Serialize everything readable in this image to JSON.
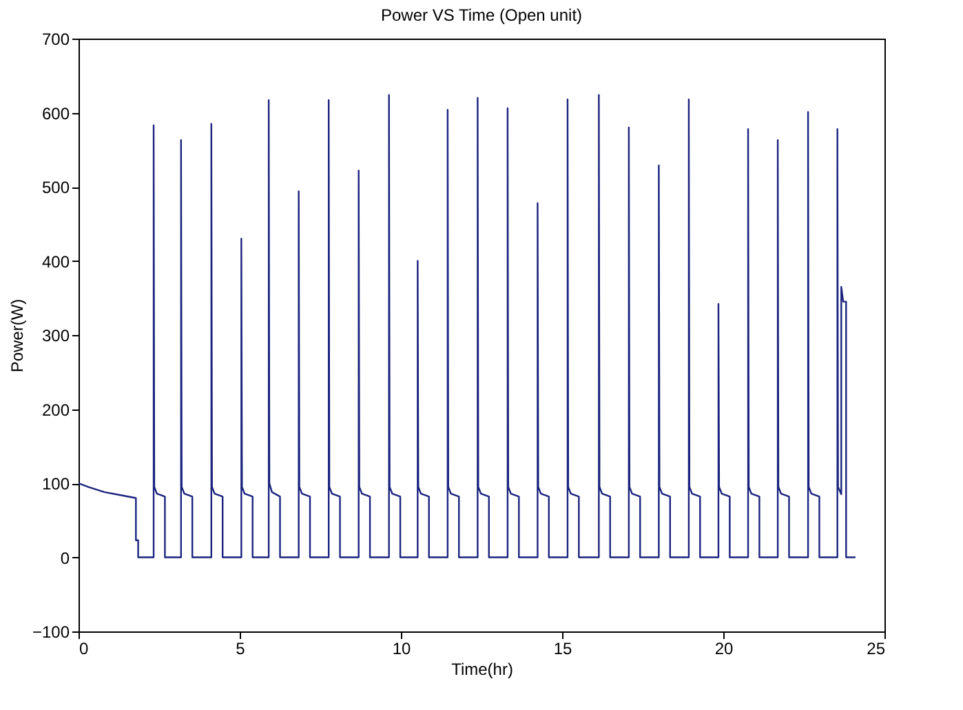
{
  "chart_data": {
    "type": "line",
    "title": "Power VS Time (Open unit)",
    "xlabel": "Time(hr)",
    "ylabel": "Power(W)",
    "xlim": [
      0,
      25
    ],
    "xticks": [
      0,
      5,
      10,
      15,
      20,
      25
    ],
    "ylim": [
      -100,
      700
    ],
    "yticks": [
      -100,
      0,
      100,
      200,
      300,
      400,
      500,
      600,
      700
    ],
    "grid": false,
    "marker": "none",
    "line_style": "solid",
    "series": [
      {
        "color": "#1a237e",
        "x": [
          0,
          0.3,
          0.8,
          1.3,
          1.78,
          1.78,
          1.85,
          1.85,
          2.33,
          2.33,
          2.35,
          2.43,
          2.68,
          2.68,
          3.18,
          3.18,
          3.2,
          3.28,
          3.53,
          3.53,
          4.12,
          4.12,
          4.14,
          4.22,
          4.47,
          4.47,
          5.05,
          5.05,
          5.07,
          5.15,
          5.4,
          5.4,
          5.9,
          5.9,
          5.92,
          6.0,
          6.25,
          6.25,
          6.83,
          6.83,
          6.85,
          6.93,
          7.18,
          7.18,
          7.76,
          7.76,
          7.78,
          7.86,
          8.11,
          8.11,
          8.69,
          8.69,
          8.71,
          8.79,
          9.04,
          9.04,
          9.63,
          9.63,
          9.65,
          9.73,
          9.98,
          9.98,
          10.52,
          10.52,
          10.54,
          10.62,
          10.87,
          10.87,
          11.45,
          11.45,
          11.47,
          11.55,
          11.8,
          11.8,
          12.38,
          12.38,
          12.4,
          12.48,
          12.73,
          12.73,
          13.31,
          13.31,
          13.33,
          13.41,
          13.66,
          13.66,
          14.24,
          14.24,
          14.26,
          14.34,
          14.59,
          14.59,
          15.17,
          15.17,
          15.19,
          15.27,
          15.52,
          15.52,
          16.14,
          16.14,
          16.16,
          16.24,
          16.49,
          16.49,
          17.07,
          17.07,
          17.09,
          17.17,
          17.42,
          17.42,
          18.0,
          18.0,
          18.02,
          18.1,
          18.35,
          18.35,
          18.93,
          18.93,
          18.95,
          19.03,
          19.28,
          19.28,
          19.85,
          19.85,
          19.87,
          19.95,
          20.2,
          20.2,
          20.77,
          20.77,
          20.79,
          20.87,
          21.12,
          21.12,
          21.69,
          21.69,
          21.71,
          21.79,
          22.04,
          22.04,
          22.63,
          22.63,
          22.65,
          22.73,
          22.98,
          22.98,
          23.54,
          23.54,
          23.56,
          23.66,
          23.66,
          23.72,
          23.81,
          23.81,
          24.1
        ],
        "values": [
          100,
          95,
          88,
          84,
          80,
          23,
          23,
          0,
          0,
          583,
          95,
          86,
          82,
          0,
          0,
          563,
          95,
          86,
          82,
          0,
          0,
          585,
          95,
          86,
          82,
          0,
          0,
          430,
          95,
          86,
          82,
          0,
          0,
          617,
          100,
          88,
          82,
          0,
          0,
          494,
          95,
          86,
          82,
          0,
          0,
          617,
          95,
          86,
          82,
          0,
          0,
          522,
          95,
          86,
          82,
          0,
          0,
          624,
          95,
          86,
          82,
          0,
          0,
          400,
          95,
          86,
          82,
          0,
          0,
          604,
          95,
          86,
          82,
          0,
          0,
          620,
          95,
          86,
          82,
          0,
          0,
          606,
          95,
          86,
          82,
          0,
          0,
          478,
          95,
          86,
          82,
          0,
          0,
          618,
          95,
          86,
          82,
          0,
          0,
          624,
          95,
          86,
          82,
          0,
          0,
          580,
          95,
          86,
          82,
          0,
          0,
          529,
          95,
          86,
          82,
          0,
          0,
          618,
          95,
          86,
          82,
          0,
          0,
          342,
          95,
          86,
          82,
          0,
          0,
          578,
          95,
          86,
          82,
          0,
          0,
          563,
          95,
          86,
          82,
          0,
          0,
          601,
          95,
          86,
          82,
          0,
          0,
          578,
          95,
          85,
          365,
          345,
          345,
          0,
          0
        ]
      }
    ]
  }
}
